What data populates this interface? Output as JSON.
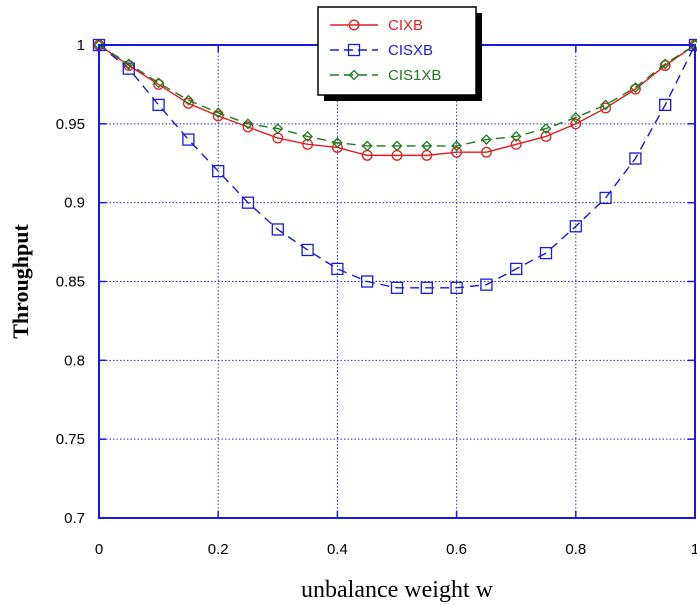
{
  "chart_data": {
    "type": "line",
    "xlabel": "unbalance weight w",
    "ylabel": "Throughput",
    "xlim": [
      0,
      1
    ],
    "ylim": [
      0.7,
      1
    ],
    "xticks": [
      0,
      0.2,
      0.4,
      0.6,
      0.8,
      1
    ],
    "yticks": [
      0.7,
      0.75,
      0.8,
      0.85,
      0.9,
      0.95,
      1
    ],
    "xtick_labels": [
      "0",
      "0.2",
      "0.4",
      "0.6",
      "0.8",
      "1"
    ],
    "ytick_labels": [
      "0.7",
      "0.75",
      "0.8",
      "0.85",
      "0.9",
      "0.95",
      "1"
    ],
    "grid": true,
    "legend_position": "top-center",
    "x": [
      0,
      0.05,
      0.1,
      0.15,
      0.2,
      0.25,
      0.3,
      0.35,
      0.4,
      0.45,
      0.5,
      0.55,
      0.6,
      0.65,
      0.7,
      0.75,
      0.8,
      0.85,
      0.9,
      0.95,
      1
    ],
    "series": [
      {
        "name": "CIXB",
        "color": "#e02020",
        "marker": "circle",
        "dash": "solid",
        "values": [
          1.0,
          0.987,
          0.975,
          0.963,
          0.955,
          0.948,
          0.941,
          0.937,
          0.935,
          0.93,
          0.93,
          0.93,
          0.932,
          0.932,
          0.937,
          0.942,
          0.95,
          0.96,
          0.972,
          0.987,
          1.0
        ]
      },
      {
        "name": "CISXB",
        "color": "#1a1adc",
        "marker": "square",
        "dash": "dashed",
        "values": [
          1.0,
          0.985,
          0.962,
          0.94,
          0.92,
          0.9,
          0.883,
          0.87,
          0.858,
          0.85,
          0.846,
          0.846,
          0.846,
          0.848,
          0.858,
          0.868,
          0.885,
          0.903,
          0.928,
          0.962,
          1.0
        ]
      },
      {
        "name": "CIS1XB",
        "color": "#1e7a1e",
        "marker": "diamond",
        "dash": "dashed",
        "values": [
          1.0,
          0.988,
          0.976,
          0.965,
          0.957,
          0.95,
          0.947,
          0.942,
          0.938,
          0.936,
          0.936,
          0.936,
          0.936,
          0.94,
          0.942,
          0.947,
          0.954,
          0.962,
          0.973,
          0.988,
          1.0
        ]
      }
    ]
  }
}
